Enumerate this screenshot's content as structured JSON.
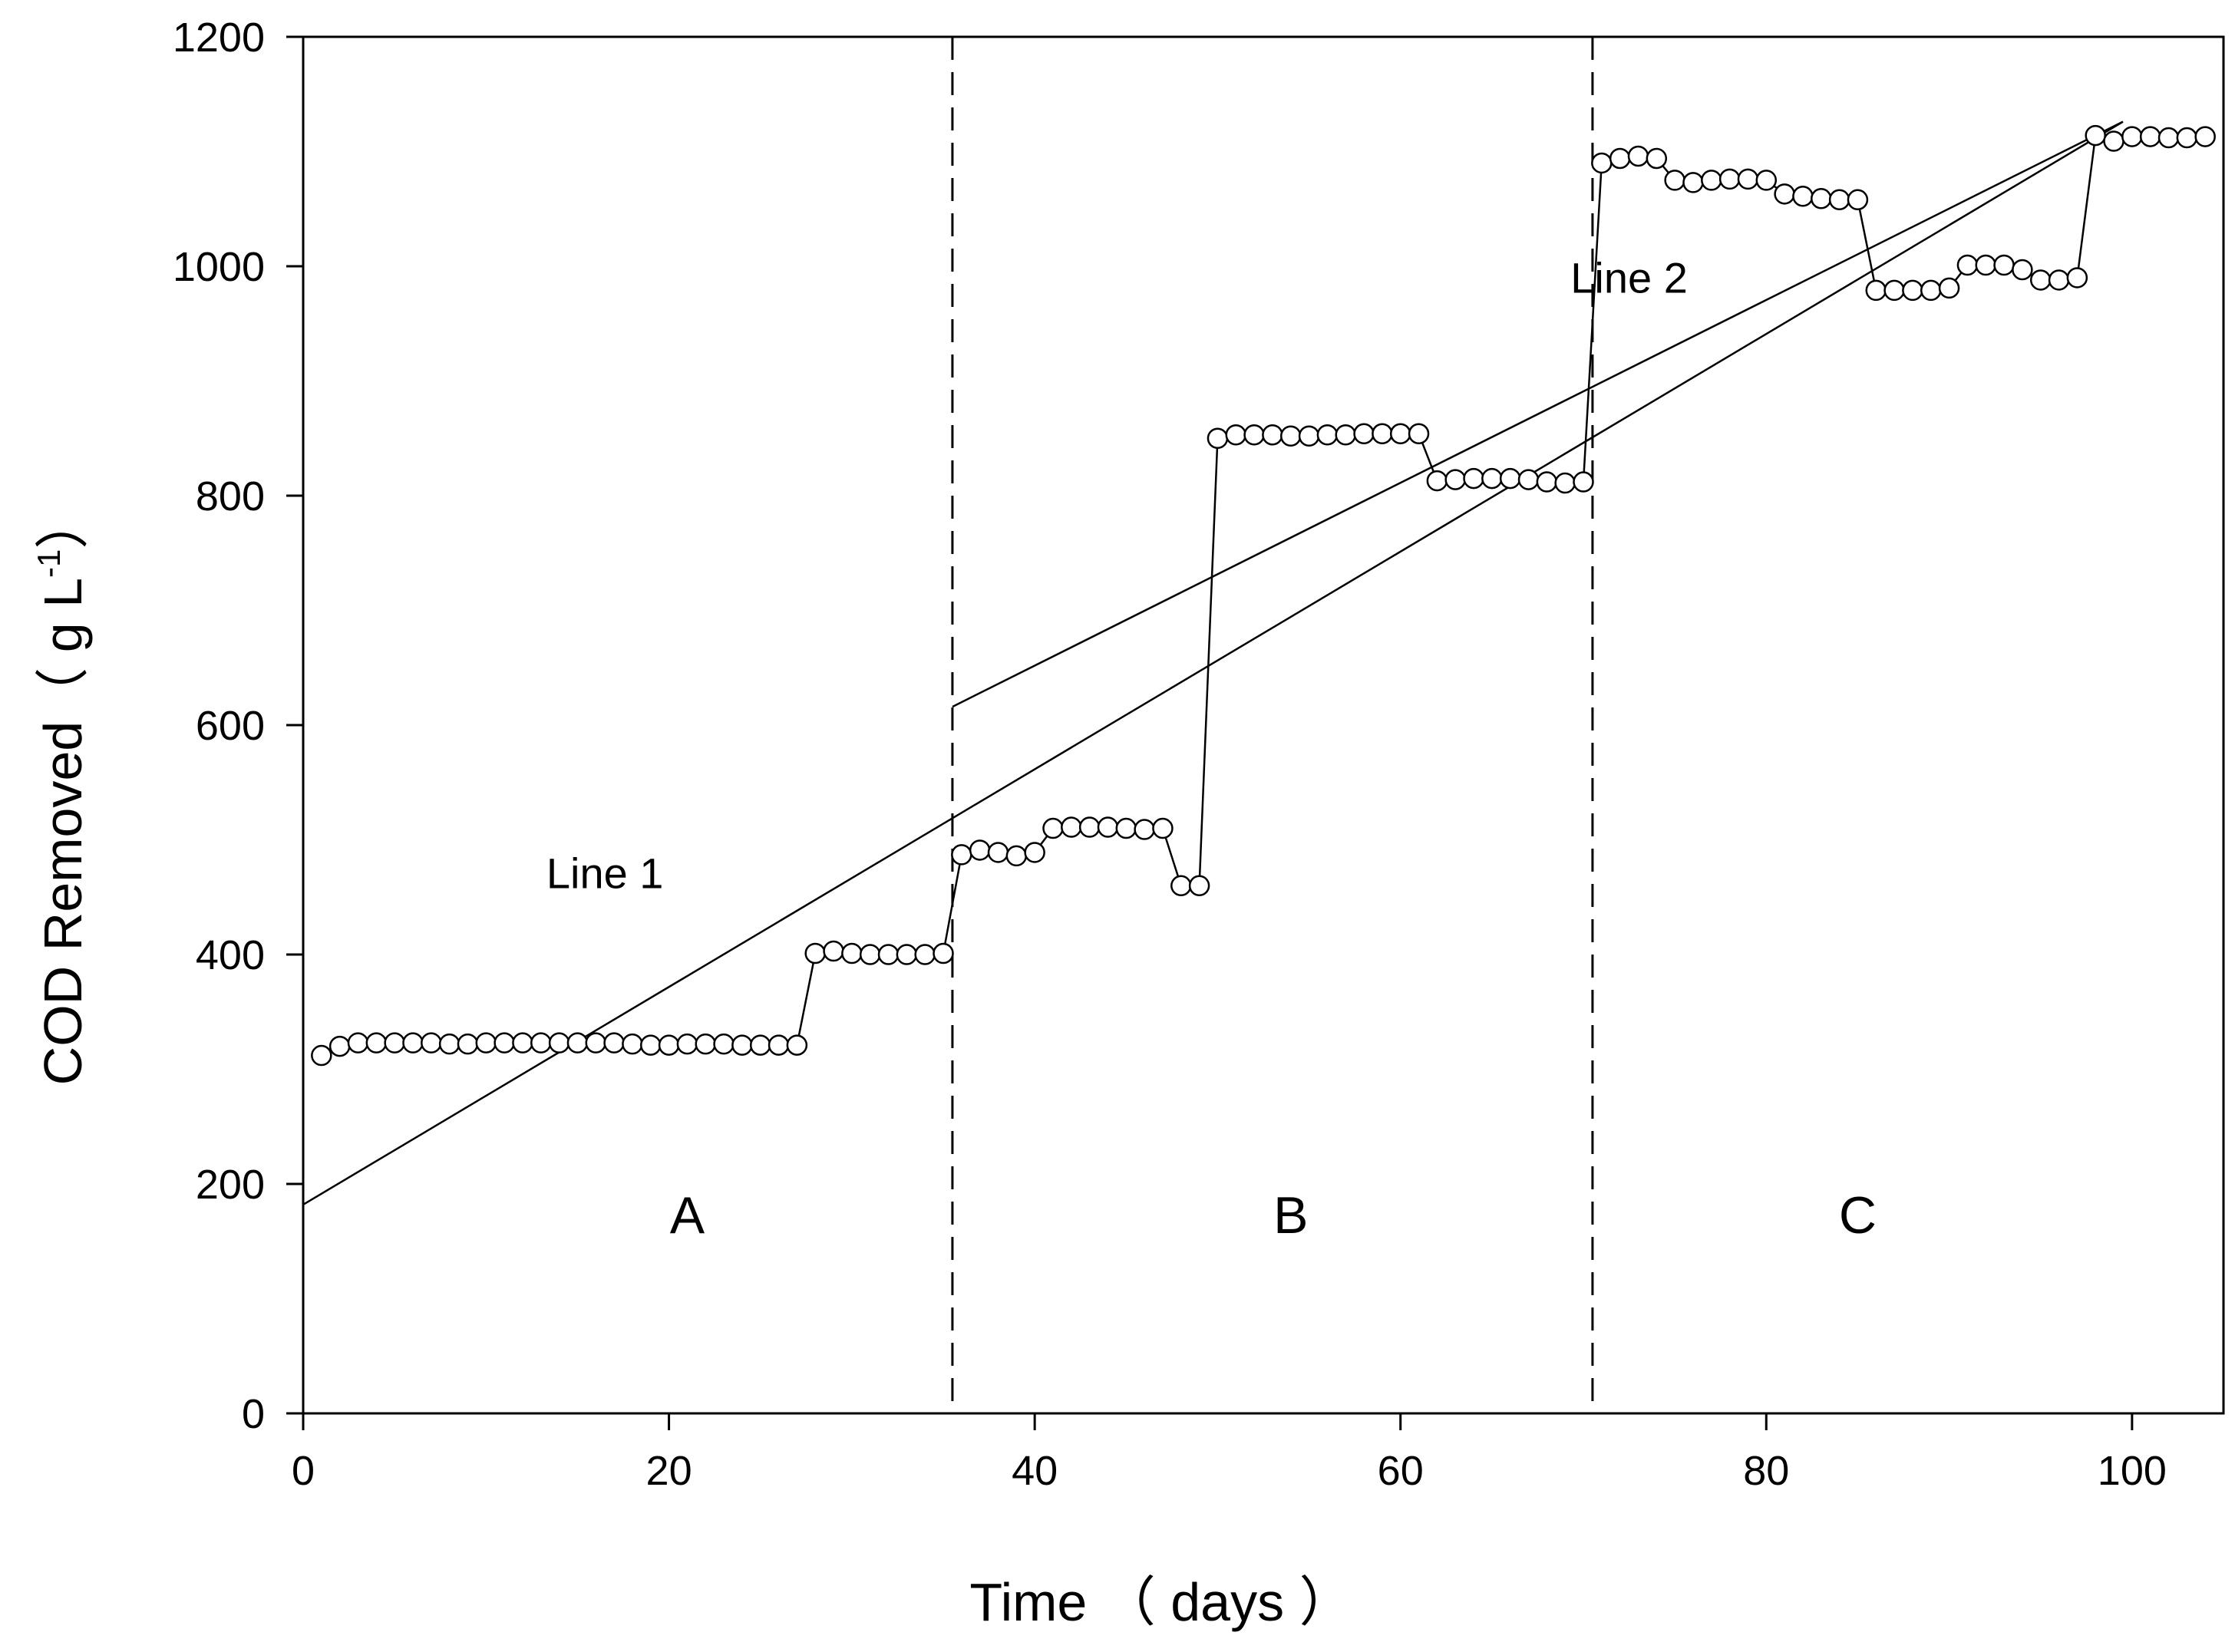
{
  "chart_data": {
    "type": "line",
    "title": "",
    "xlabel": "Time （ days ）",
    "ylabel": "COD  Removed（ g L",
    "ylabel_sup": "-1",
    "ylabel_end": "）",
    "xlim": [
      0,
      105
    ],
    "ylim": [
      0,
      1200
    ],
    "xticks": [
      0,
      20,
      40,
      60,
      80,
      100
    ],
    "yticks": [
      0,
      200,
      400,
      600,
      800,
      1000,
      1200
    ],
    "grid": false,
    "dividers": [
      35.5,
      70.5
    ],
    "regions": [
      {
        "label": "A",
        "x": 21
      },
      {
        "label": "B",
        "x": 54
      },
      {
        "label": "C",
        "x": 85
      }
    ],
    "series": [
      {
        "name": "COD Removed",
        "marker": "open-circle",
        "x": [
          1,
          2,
          3,
          4,
          5,
          6,
          7,
          8,
          9,
          10,
          11,
          12,
          13,
          14,
          15,
          16,
          17,
          18,
          19,
          20,
          21,
          22,
          23,
          24,
          25,
          26,
          27,
          28,
          29,
          30,
          31,
          32,
          33,
          34,
          35,
          36,
          37,
          38,
          39,
          40,
          41,
          42,
          43,
          44,
          45,
          46,
          47,
          48,
          49,
          50,
          51,
          52,
          53,
          54,
          55,
          56,
          57,
          58,
          59,
          60,
          61,
          62,
          63,
          64,
          65,
          66,
          67,
          68,
          69,
          70,
          71,
          72,
          73,
          74,
          75,
          76,
          77,
          78,
          79,
          80,
          81,
          82,
          83,
          84,
          85,
          86,
          87,
          88,
          89,
          90,
          91,
          92,
          93,
          94,
          95,
          96,
          97,
          98,
          99,
          100,
          101,
          102,
          103,
          104
        ],
        "values": [
          312,
          320,
          323,
          323,
          323,
          323,
          323,
          322,
          322,
          323,
          323,
          323,
          323,
          323,
          323,
          323,
          323,
          322,
          321,
          321,
          322,
          322,
          322,
          321,
          321,
          321,
          321,
          401,
          403,
          401,
          400,
          400,
          400,
          400,
          401,
          487,
          491,
          489,
          486,
          489,
          510,
          511,
          511,
          511,
          510,
          509,
          510,
          460,
          460,
          850,
          853,
          853,
          853,
          852,
          852,
          853,
          853,
          854,
          854,
          854,
          854,
          813,
          814,
          815,
          815,
          815,
          814,
          812,
          811,
          812,
          1090,
          1094,
          1096,
          1094,
          1075,
          1073,
          1075,
          1076,
          1076,
          1075,
          1063,
          1061,
          1059,
          1058,
          1058,
          979,
          979,
          979,
          979,
          981,
          1001,
          1001,
          1001,
          997,
          988,
          988,
          990,
          1114,
          1109,
          1113,
          1113,
          1112,
          1112,
          1113
        ]
      }
    ],
    "trend_lines": [
      {
        "name": "Line 1",
        "x0": 0,
        "y0": 182,
        "x1": 99.5,
        "y1": 1126,
        "label_x": 16.5,
        "label_y": 458
      },
      {
        "name": "Line 2",
        "x0": 35.5,
        "y0": 616,
        "x1": 99.5,
        "y1": 1126,
        "label_x": 72.5,
        "label_y": 977
      }
    ]
  }
}
